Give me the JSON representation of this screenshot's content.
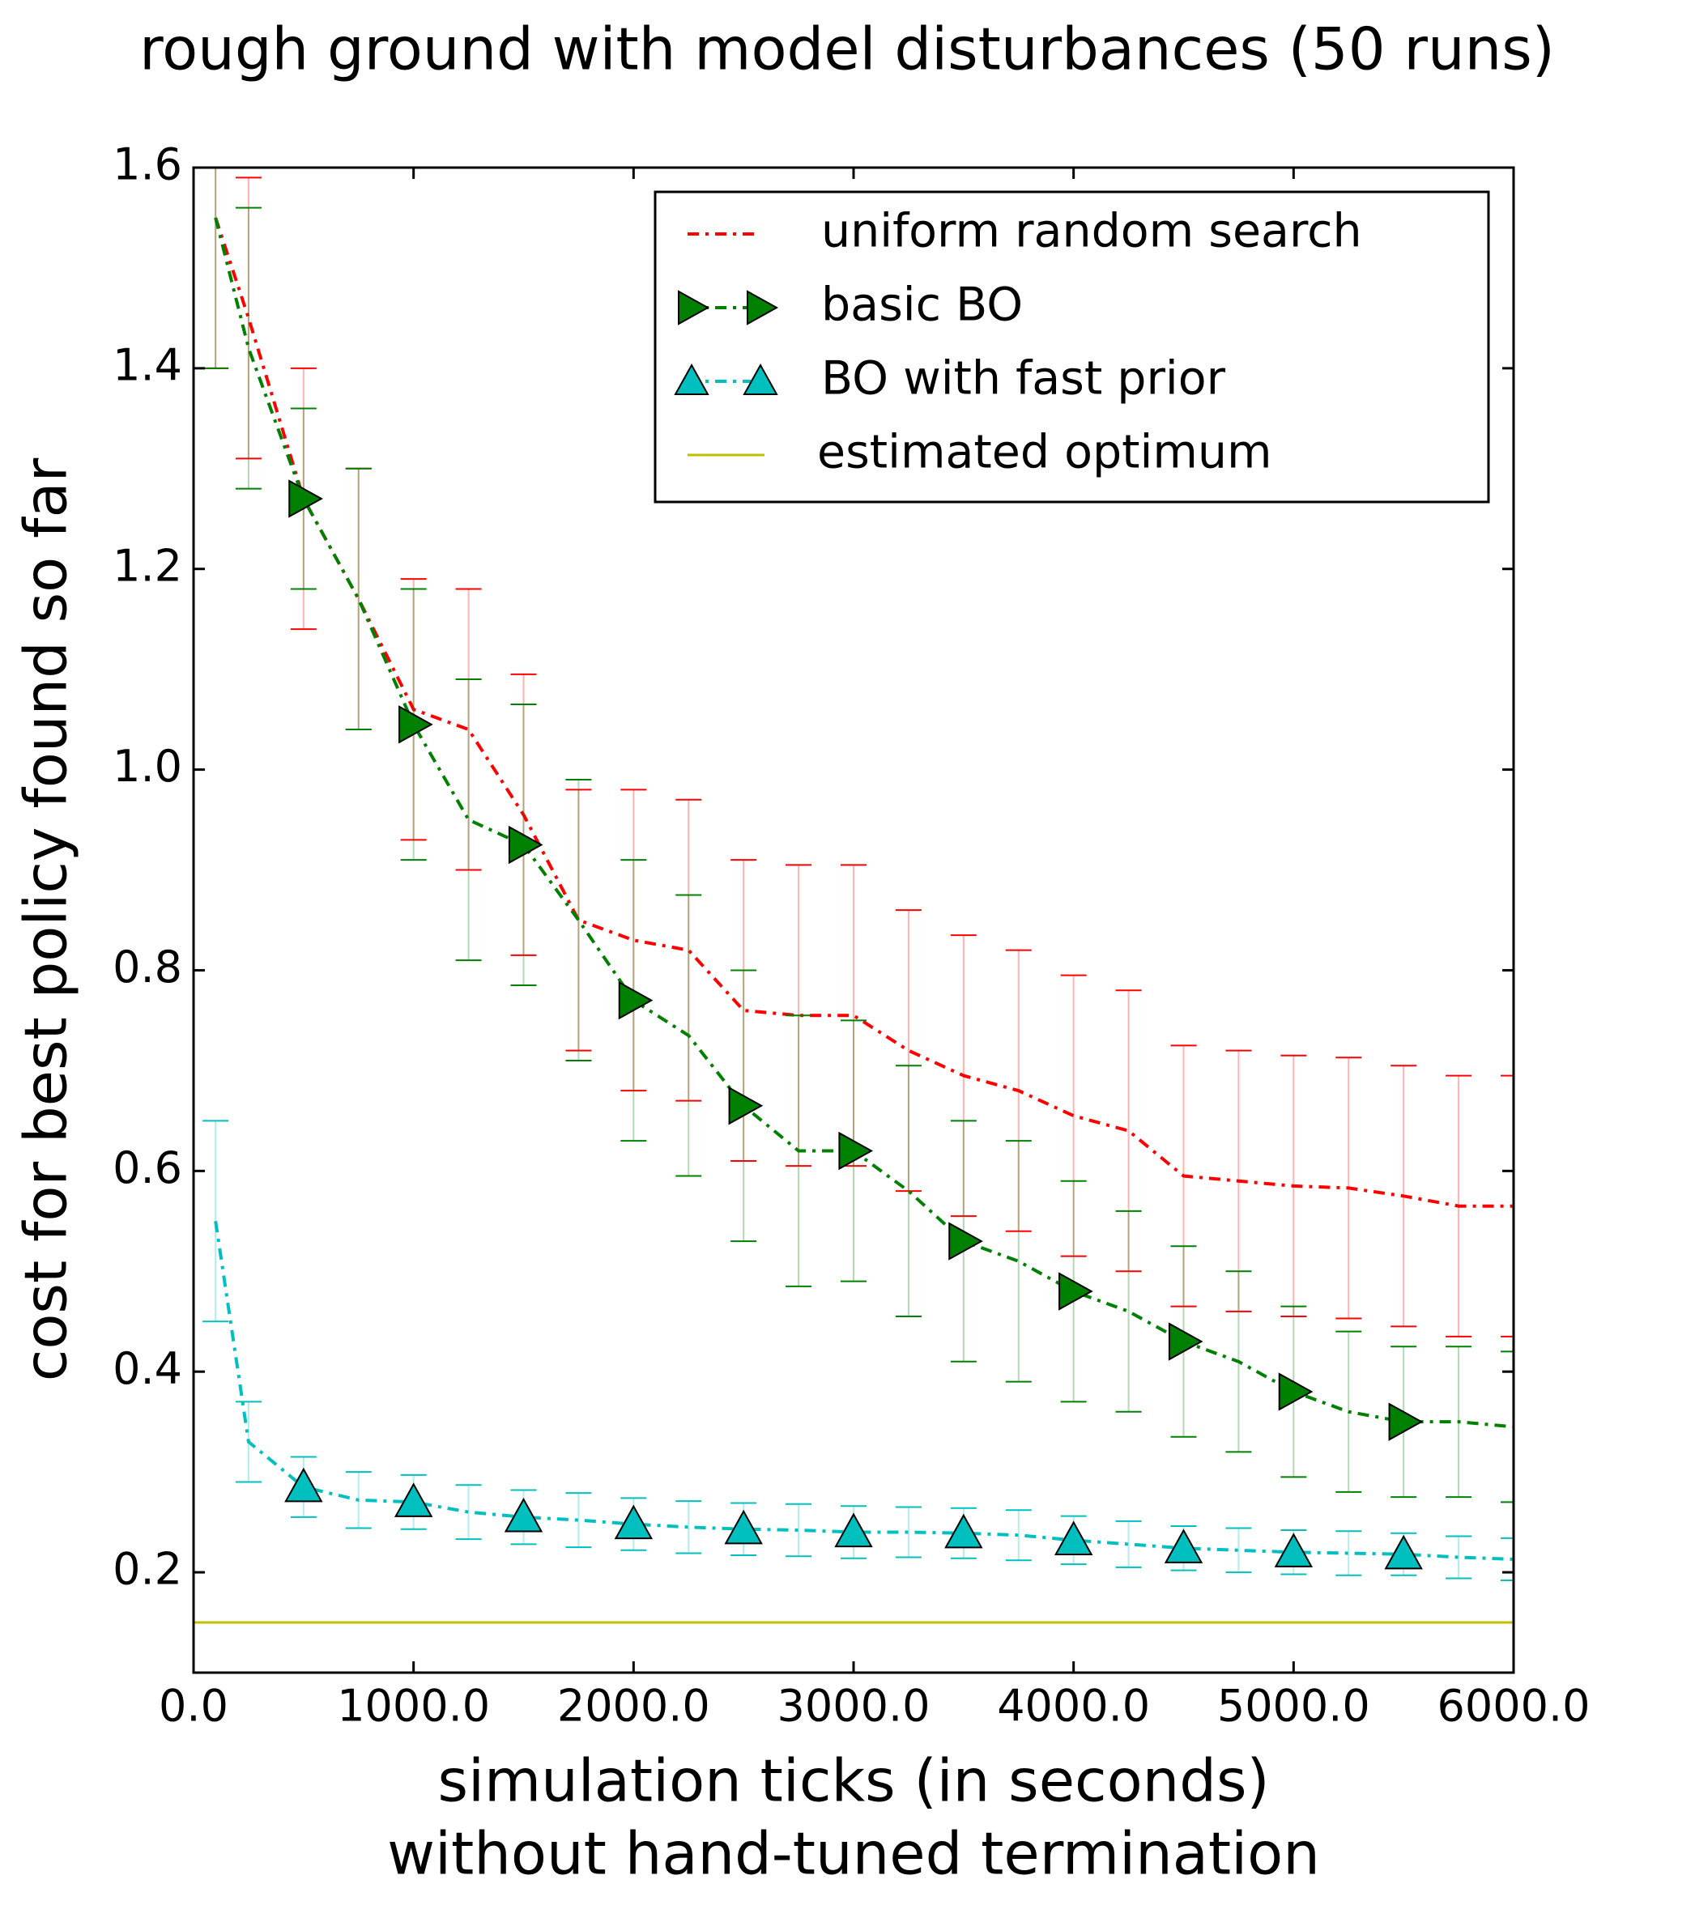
{
  "chart_data": {
    "type": "line",
    "title": "rough ground with model disturbances (50 runs)",
    "x_label": "simulation ticks (in seconds)",
    "x_label_2": "without hand-tuned termination",
    "y_label": "cost for best policy found so far",
    "x": [
      100,
      250,
      500,
      750,
      1000,
      1250,
      1500,
      1750,
      2000,
      2250,
      2500,
      2750,
      3000,
      3250,
      3500,
      3750,
      4000,
      4250,
      4500,
      4750,
      5000,
      5250,
      5500,
      5750,
      6000
    ],
    "series": [
      {
        "name": "uniform random search",
        "color": "#ff0000",
        "marker": null,
        "values": [
          1.55,
          1.45,
          1.27,
          1.17,
          1.06,
          1.04,
          0.955,
          0.85,
          0.83,
          0.82,
          0.76,
          0.755,
          0.755,
          0.72,
          0.695,
          0.68,
          0.655,
          0.64,
          0.595,
          0.59,
          0.585,
          0.583,
          0.575,
          0.565,
          0.565
        ],
        "errors": [
          0.15,
          0.14,
          0.13,
          0.13,
          0.13,
          0.14,
          0.14,
          0.13,
          0.15,
          0.15,
          0.15,
          0.15,
          0.15,
          0.14,
          0.14,
          0.14,
          0.14,
          0.14,
          0.13,
          0.13,
          0.13,
          0.13,
          0.13,
          0.13,
          0.13
        ]
      },
      {
        "name": "basic BO",
        "color": "#008000",
        "marker": "triangle-right",
        "values": [
          1.55,
          1.42,
          1.27,
          1.17,
          1.045,
          0.95,
          0.925,
          0.85,
          0.77,
          0.735,
          0.665,
          0.62,
          0.62,
          0.58,
          0.53,
          0.51,
          0.48,
          0.46,
          0.43,
          0.41,
          0.38,
          0.36,
          0.35,
          0.35,
          0.345
        ],
        "errors": [
          0.15,
          0.14,
          0.09,
          0.13,
          0.135,
          0.14,
          0.14,
          0.14,
          0.14,
          0.14,
          0.135,
          0.135,
          0.13,
          0.125,
          0.12,
          0.12,
          0.11,
          0.1,
          0.095,
          0.09,
          0.085,
          0.08,
          0.075,
          0.075,
          0.075
        ]
      },
      {
        "name": "BO with fast prior",
        "color": "#00bfbf",
        "marker": "triangle-up",
        "values": [
          0.55,
          0.33,
          0.285,
          0.272,
          0.27,
          0.26,
          0.255,
          0.252,
          0.248,
          0.245,
          0.243,
          0.242,
          0.24,
          0.24,
          0.239,
          0.237,
          0.232,
          0.228,
          0.224,
          0.222,
          0.22,
          0.219,
          0.218,
          0.215,
          0.213
        ],
        "errors": [
          0.1,
          0.04,
          0.03,
          0.028,
          0.027,
          0.027,
          0.027,
          0.027,
          0.026,
          0.026,
          0.026,
          0.026,
          0.026,
          0.025,
          0.025,
          0.025,
          0.024,
          0.023,
          0.022,
          0.022,
          0.022,
          0.022,
          0.021,
          0.021,
          0.021
        ]
      }
    ],
    "reference_line": {
      "name": "estimated optimum",
      "value": 0.15,
      "color": "#bfbf00"
    },
    "xlim": [
      0,
      6000
    ],
    "xticks": [
      {
        "value": 0,
        "label": "0.0"
      },
      {
        "value": 1000,
        "label": "1000.0"
      },
      {
        "value": 2000,
        "label": "2000.0"
      },
      {
        "value": 3000,
        "label": "3000.0"
      },
      {
        "value": 4000,
        "label": "4000.0"
      },
      {
        "value": 5000,
        "label": "5000.0"
      },
      {
        "value": 6000,
        "label": "6000.0"
      }
    ],
    "ylim": [
      0.1,
      1.6
    ],
    "yticks": [
      0.2,
      0.4,
      0.6,
      0.8,
      {
        "value": 1,
        "label": "1.0"
      },
      1.2,
      1.4,
      1.6
    ],
    "legend": "upper right"
  }
}
